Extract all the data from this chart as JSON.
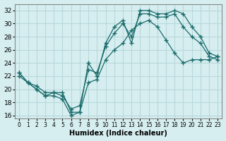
{
  "xlabel": "Humidex (Indice chaleur)",
  "ylabel": "",
  "xlim": [
    -0.5,
    23.5
  ],
  "ylim": [
    15.5,
    33.0
  ],
  "yticks": [
    16,
    18,
    20,
    22,
    24,
    26,
    28,
    30,
    32
  ],
  "xticks": [
    0,
    1,
    2,
    3,
    4,
    5,
    6,
    7,
    8,
    9,
    10,
    11,
    12,
    13,
    14,
    15,
    16,
    17,
    18,
    19,
    20,
    21,
    22,
    23
  ],
  "background_color": "#d6eef0",
  "grid_color": "#b8d8da",
  "line_color": "#1a6b6b",
  "line1_x": [
    0,
    1,
    2,
    3,
    4,
    5,
    6,
    7,
    8,
    9,
    10,
    11,
    12,
    13,
    14,
    15,
    16,
    17,
    18,
    19,
    20,
    21,
    22,
    23
  ],
  "line1_y": [
    22.5,
    21.0,
    20.0,
    19.0,
    19.0,
    18.5,
    16.0,
    16.5,
    24.0,
    22.0,
    27.0,
    29.5,
    30.5,
    27.0,
    32.0,
    32.0,
    31.5,
    31.5,
    32.0,
    31.5,
    29.5,
    28.0,
    25.5,
    25.0
  ],
  "line2_x": [
    0,
    1,
    2,
    3,
    4,
    5,
    6,
    7,
    8,
    9,
    10,
    11,
    12,
    13,
    14,
    15,
    16,
    17,
    18,
    19,
    20,
    21,
    22,
    23
  ],
  "line2_y": [
    22.5,
    21.0,
    20.5,
    19.5,
    19.5,
    19.0,
    17.0,
    17.5,
    23.0,
    22.5,
    26.5,
    28.5,
    30.0,
    28.0,
    31.5,
    31.5,
    31.0,
    31.0,
    31.5,
    29.5,
    28.0,
    27.0,
    25.0,
    24.5
  ],
  "line3_x": [
    0,
    1,
    2,
    3,
    4,
    5,
    6,
    7,
    8,
    9,
    10,
    11,
    12,
    13,
    14,
    15,
    16,
    17,
    18,
    19,
    20,
    21,
    22,
    23
  ],
  "line3_y": [
    22.0,
    21.0,
    20.0,
    19.0,
    19.5,
    19.5,
    16.5,
    16.5,
    21.0,
    21.5,
    24.5,
    26.0,
    27.0,
    29.0,
    30.0,
    30.5,
    29.5,
    27.5,
    25.5,
    24.0,
    24.5,
    24.5,
    24.5,
    25.0
  ]
}
